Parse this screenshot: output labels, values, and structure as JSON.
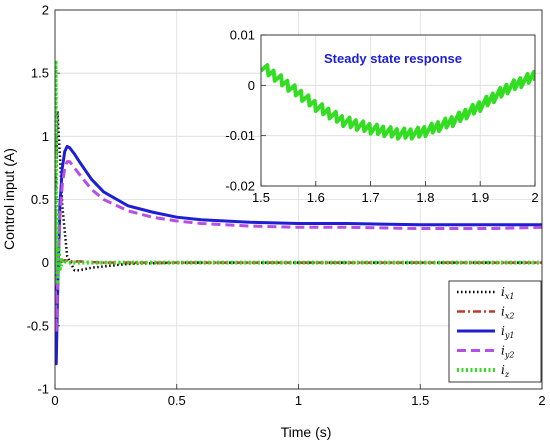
{
  "chart_data": [
    {
      "type": "line",
      "xlabel": "Time (s)",
      "ylabel": "Control input (A)",
      "xlim": [
        0,
        2
      ],
      "ylim": [
        -1,
        2
      ],
      "xticks": [
        "0",
        "0.5",
        "1",
        "1.5",
        "2"
      ],
      "yticks": [
        "-1",
        "-0.5",
        "0",
        "0.5",
        "1",
        "1.5",
        "2"
      ],
      "grid": true,
      "legend_position": "bottom-right",
      "series": [
        {
          "name": "i_x1",
          "color": "#000000",
          "style": "dotted",
          "x": [
            0,
            0.005,
            0.01,
            0.02,
            0.03,
            0.05,
            0.08,
            0.1,
            0.15,
            0.2,
            0.3,
            0.5,
            1.0,
            1.5,
            2.0
          ],
          "y": [
            0,
            0.7,
            1.2,
            0.85,
            0.45,
            0.05,
            -0.06,
            -0.06,
            -0.04,
            -0.03,
            -0.01,
            0.0,
            0.0,
            0.0,
            0.0
          ]
        },
        {
          "name": "i_x2",
          "color": "#c0392b",
          "style": "dashdot",
          "x": [
            0,
            0.005,
            0.01,
            0.02,
            0.04,
            0.06,
            0.1,
            0.2,
            0.5,
            1.0,
            1.5,
            2.0
          ],
          "y": [
            0,
            -0.25,
            -0.1,
            0.0,
            0.02,
            0.01,
            0.01,
            0.0,
            0.0,
            0.0,
            0.0,
            0.0
          ]
        },
        {
          "name": "i_y1",
          "color": "#1e1ed2",
          "style": "solid",
          "x": [
            0,
            0.005,
            0.01,
            0.02,
            0.03,
            0.04,
            0.05,
            0.06,
            0.08,
            0.1,
            0.15,
            0.2,
            0.3,
            0.4,
            0.5,
            0.6,
            0.8,
            1.0,
            1.2,
            1.5,
            1.8,
            2.0
          ],
          "y": [
            0,
            -0.8,
            -0.3,
            0.45,
            0.75,
            0.88,
            0.92,
            0.91,
            0.86,
            0.8,
            0.66,
            0.56,
            0.45,
            0.4,
            0.36,
            0.34,
            0.32,
            0.31,
            0.31,
            0.3,
            0.3,
            0.3
          ]
        },
        {
          "name": "i_y2",
          "color": "#b84ee8",
          "style": "dashed",
          "x": [
            0,
            0.005,
            0.01,
            0.02,
            0.03,
            0.04,
            0.05,
            0.06,
            0.08,
            0.1,
            0.15,
            0.2,
            0.3,
            0.4,
            0.5,
            0.6,
            0.8,
            1.0,
            1.2,
            1.5,
            1.8,
            2.0
          ],
          "y": [
            0,
            -0.55,
            -0.2,
            0.35,
            0.62,
            0.75,
            0.8,
            0.8,
            0.75,
            0.7,
            0.58,
            0.5,
            0.41,
            0.36,
            0.33,
            0.31,
            0.29,
            0.28,
            0.28,
            0.27,
            0.27,
            0.28
          ]
        },
        {
          "name": "i_z",
          "color": "#33dd22",
          "style": "dotted-thick",
          "x": [
            0,
            0.002,
            0.004,
            0.006,
            0.008,
            0.01,
            0.015,
            0.02,
            0.03,
            0.05,
            0.1,
            0.5,
            1.0,
            1.5,
            2.0
          ],
          "y": [
            0,
            1.6,
            0.9,
            -0.1,
            0.4,
            -0.15,
            0.1,
            -0.05,
            0.02,
            0.0,
            0.0,
            0.0,
            0.0,
            0.0,
            0.0
          ]
        }
      ]
    },
    {
      "type": "line",
      "title": "Steady state response",
      "title_color": "#1e1ed2",
      "xlim": [
        1.5,
        2.0
      ],
      "ylim": [
        -0.02,
        0.01
      ],
      "xticks": [
        "1.5",
        "1.6",
        "1.7",
        "1.8",
        "1.9",
        "2"
      ],
      "yticks": [
        "-0.02",
        "-0.01",
        "0",
        "0.01"
      ],
      "grid": true,
      "series": [
        {
          "color": "#33dd22",
          "style": "noisy",
          "x": [
            1.5,
            1.55,
            1.6,
            1.65,
            1.7,
            1.75,
            1.78,
            1.8,
            1.85,
            1.9,
            1.95,
            2.0
          ],
          "y": [
            0.004,
            0.0,
            -0.004,
            -0.007,
            -0.0085,
            -0.0095,
            -0.0095,
            -0.009,
            -0.007,
            -0.004,
            -0.0005,
            0.002
          ]
        }
      ]
    }
  ]
}
